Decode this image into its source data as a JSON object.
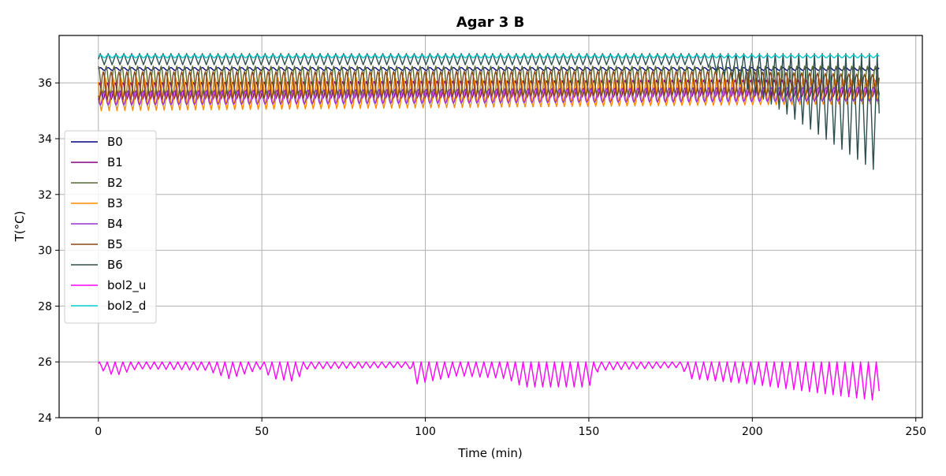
{
  "chart_data": {
    "type": "line",
    "title": "Agar 3 B",
    "xlabel": "Time (min)",
    "ylabel": "T(°C)",
    "xlim": [
      -12,
      252
    ],
    "ylim": [
      24,
      37.7
    ],
    "xticks": [
      0,
      50,
      100,
      150,
      200,
      250
    ],
    "yticks": [
      24,
      26,
      28,
      30,
      32,
      34,
      36
    ],
    "grid": true,
    "legend_position": "center-left",
    "series": [
      {
        "name": "B0",
        "color": "#000080",
        "pattern": "narrow",
        "base": [
          [
            0,
            36.5
          ],
          [
            239,
            36.5
          ]
        ],
        "amp": [
          [
            0,
            0.05
          ],
          [
            239,
            0.05
          ]
        ],
        "period": 2.4
      },
      {
        "name": "B1",
        "color": "#800080",
        "pattern": "band",
        "base": [
          [
            0,
            35.7
          ],
          [
            180,
            35.8
          ],
          [
            239,
            35.8
          ]
        ],
        "amp": [
          [
            0,
            0.3
          ],
          [
            239,
            0.3
          ]
        ],
        "period": 2.4
      },
      {
        "name": "B2",
        "color": "#556B2F",
        "pattern": "band",
        "base": [
          [
            0,
            36.1
          ],
          [
            239,
            36.1
          ]
        ],
        "amp": [
          [
            0,
            0.5
          ],
          [
            239,
            0.5
          ]
        ],
        "period": 2.4
      },
      {
        "name": "B3",
        "color": "#FF8C00",
        "pattern": "band",
        "base": [
          [
            0,
            35.6
          ],
          [
            239,
            35.7
          ]
        ],
        "amp": [
          [
            0,
            0.6
          ],
          [
            239,
            0.45
          ]
        ],
        "period": 2.4
      },
      {
        "name": "B4",
        "color": "#9932CC",
        "pattern": "band",
        "base": [
          [
            0,
            35.45
          ],
          [
            239,
            35.6
          ]
        ],
        "amp": [
          [
            0,
            0.25
          ],
          [
            239,
            0.25
          ]
        ],
        "period": 2.4
      },
      {
        "name": "B5",
        "color": "#8B4513",
        "pattern": "band",
        "base": [
          [
            0,
            35.9
          ],
          [
            190,
            36.0
          ],
          [
            239,
            35.9
          ]
        ],
        "amp": [
          [
            0,
            0.5
          ],
          [
            239,
            0.4
          ]
        ],
        "period": 2.4
      },
      {
        "name": "B6",
        "color": "#2F4F4F",
        "pattern": "hang",
        "top": [
          [
            0,
            37.05
          ],
          [
            239,
            37.05
          ]
        ],
        "drop": [
          [
            0,
            0.4
          ],
          [
            185,
            0.4
          ],
          [
            195,
            1.0
          ],
          [
            239,
            4.3
          ]
        ],
        "period": 2.4
      },
      {
        "name": "bol2_u",
        "color": "#FF00FF",
        "pattern": "hang",
        "top": [
          [
            0,
            26.0
          ],
          [
            239,
            26.0
          ]
        ],
        "drop": [
          [
            0,
            0.25
          ],
          [
            5,
            0.5
          ],
          [
            12,
            0.25
          ],
          [
            33,
            0.3
          ],
          [
            40,
            0.6
          ],
          [
            50,
            0.25
          ],
          [
            53,
            0.6
          ],
          [
            60,
            0.7
          ],
          [
            64,
            0.25
          ],
          [
            95,
            0.2
          ],
          [
            97,
            0.8
          ],
          [
            110,
            0.5
          ],
          [
            125,
            0.6
          ],
          [
            130,
            0.9
          ],
          [
            150,
            0.9
          ],
          [
            153,
            0.3
          ],
          [
            178,
            0.2
          ],
          [
            181,
            0.6
          ],
          [
            200,
            0.8
          ],
          [
            239,
            1.4
          ]
        ],
        "period": 2.4
      },
      {
        "name": "bol2_d",
        "color": "#00CED1",
        "pattern": "narrow",
        "base": [
          [
            0,
            36.95
          ],
          [
            239,
            36.95
          ]
        ],
        "amp": [
          [
            0,
            0.05
          ],
          [
            239,
            0.05
          ]
        ],
        "period": 2.4
      }
    ]
  }
}
